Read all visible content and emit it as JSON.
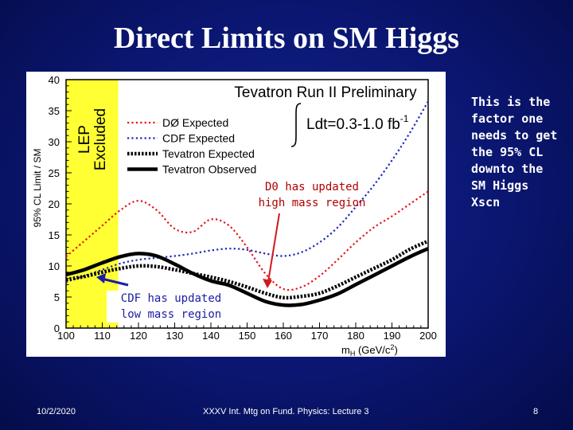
{
  "slide": {
    "title": "Direct Limits on SM Higgs",
    "side_note": "This is the\nfactor one\nneeds to get\nthe 95% CL\ndownto the\nSM Higgs\nXscn",
    "annotation_d0": "D0 has updated\nhigh mass region",
    "annotation_cdf": "CDF has updated\nlow mass region",
    "footer": {
      "date": "10/2/2020",
      "center": "XXXV Int. Mtg on Fund. Physics: Lecture 3",
      "page": "8"
    }
  },
  "chart_data": {
    "type": "line",
    "title": "Tevatron Run II Preliminary",
    "luminosity_label_prefix": "Ldt=0.3-1.0 fb",
    "luminosity_label_sup": "-1",
    "ylabel": "95% CL Limit / SM",
    "xlabel": "m",
    "xlabel_sub": "H",
    "xlabel_unit": "(GeV/c",
    "xlabel_unit_sup": "2",
    "xlabel_end": ")",
    "xlim": [
      100,
      200
    ],
    "ylim": [
      0,
      40
    ],
    "x_ticks": [
      100,
      110,
      120,
      130,
      140,
      150,
      160,
      170,
      180,
      190,
      200
    ],
    "y_ticks": [
      0,
      5,
      10,
      15,
      20,
      25,
      30,
      35,
      40
    ],
    "excluded_region": {
      "label_line1": "LEP",
      "label_line2": "Excluded",
      "x_range": [
        100,
        114.4
      ],
      "color": "#ffff33"
    },
    "x": [
      100,
      105,
      110,
      115,
      120,
      125,
      130,
      135,
      140,
      145,
      150,
      155,
      160,
      165,
      170,
      175,
      180,
      185,
      190,
      195,
      200
    ],
    "series": [
      {
        "name": "DØ Expected",
        "color": "#e3141c",
        "style": "dotted",
        "values": [
          11.5,
          14.0,
          16.5,
          19.0,
          20.5,
          19.0,
          16.0,
          15.5,
          17.5,
          16.5,
          13.0,
          8.8,
          6.3,
          6.6,
          8.4,
          11.0,
          13.8,
          16.2,
          18.0,
          20.0,
          22.0
        ]
      },
      {
        "name": "CDF Expected",
        "color": "#1a28b8",
        "style": "dotted",
        "values": [
          7.4,
          8.4,
          9.4,
          10.4,
          11.0,
          11.3,
          11.6,
          12.0,
          12.5,
          12.8,
          12.6,
          12.0,
          11.6,
          12.2,
          13.8,
          16.2,
          19.5,
          23.0,
          27.0,
          31.5,
          36.5
        ]
      },
      {
        "name": "Tevatron Expected",
        "color": "#000000",
        "style": "dashed-thick",
        "values": [
          7.8,
          8.3,
          9.0,
          9.6,
          10.0,
          9.9,
          9.4,
          8.8,
          8.2,
          7.5,
          6.6,
          5.6,
          4.9,
          5.1,
          5.6,
          6.8,
          8.2,
          9.6,
          11.0,
          12.7,
          14.0
        ]
      },
      {
        "name": "Tevatron Observed",
        "color": "#000000",
        "style": "solid-thick",
        "values": [
          8.6,
          9.4,
          10.5,
          11.5,
          12.0,
          11.6,
          10.3,
          8.8,
          7.6,
          6.9,
          5.6,
          4.3,
          3.7,
          3.8,
          4.5,
          5.5,
          7.0,
          8.5,
          10.0,
          11.5,
          12.8
        ]
      }
    ]
  }
}
